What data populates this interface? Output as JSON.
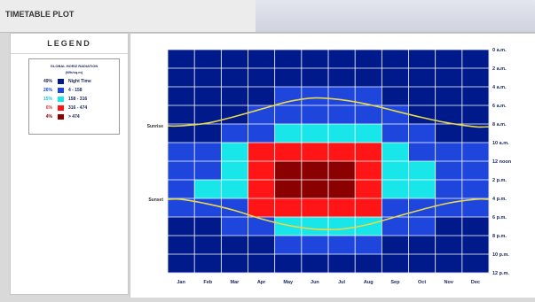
{
  "window": {
    "title": "TIMETABLE PLOT"
  },
  "legend": {
    "heading": "LEGEND",
    "caption_line1": "GLOBAL HORIZ RADIATION",
    "caption_line2": "(Wh/sq.m)",
    "items": [
      {
        "percent": "49%",
        "label": "Night Time",
        "color": "#001a8c"
      },
      {
        "percent": "26%",
        "label": "4 - 158",
        "color": "#1e46dc"
      },
      {
        "percent": "15%",
        "label": "158 - 316",
        "color": "#19e6e8"
      },
      {
        "percent": "6%",
        "label": "316 - 474",
        "color": "#ff1515"
      },
      {
        "percent": "4%",
        "label": "> 474",
        "color": "#8b0000"
      }
    ]
  },
  "chart_data": {
    "type": "heatmap",
    "title": "",
    "x_categories": [
      "Jan",
      "Feb",
      "Mar",
      "Apr",
      "May",
      "Jun",
      "Jul",
      "Aug",
      "Sep",
      "Oct",
      "Nov",
      "Dec"
    ],
    "y_labels": [
      "0 a.m.",
      "2 a.m.",
      "4 a.m.",
      "6 a.m.",
      "8 a.m.",
      "10 a.m.",
      "12 noon",
      "2 p.m.",
      "4 p.m.",
      "6 p.m.",
      "8 p.m.",
      "10 p.m.",
      "12 p.m."
    ],
    "hour_range": [
      0,
      24
    ],
    "row_hours": 2,
    "matrix_note": "rows = hours 0-2 .. 22-24, columns = Jan..Dec; 0 Night Time, 1 4-158, 2 158-316, 3 316-474, 4 >474",
    "matrix": [
      [
        0,
        0,
        0,
        0,
        0,
        0,
        0,
        0,
        0,
        0,
        0,
        0
      ],
      [
        0,
        0,
        0,
        0,
        0,
        0,
        0,
        0,
        0,
        0,
        0,
        0
      ],
      [
        0,
        0,
        0,
        0,
        1,
        1,
        1,
        1,
        0,
        0,
        0,
        0
      ],
      [
        0,
        0,
        0,
        1,
        1,
        1,
        1,
        1,
        1,
        0,
        0,
        0
      ],
      [
        0,
        0,
        1,
        1,
        2,
        2,
        2,
        2,
        1,
        1,
        0,
        0
      ],
      [
        1,
        1,
        2,
        3,
        3,
        3,
        3,
        3,
        2,
        1,
        1,
        1
      ],
      [
        1,
        1,
        2,
        3,
        4,
        4,
        4,
        3,
        2,
        2,
        1,
        1
      ],
      [
        1,
        2,
        2,
        3,
        4,
        4,
        4,
        3,
        2,
        2,
        1,
        1
      ],
      [
        1,
        1,
        1,
        3,
        3,
        3,
        3,
        3,
        1,
        1,
        1,
        1
      ],
      [
        0,
        0,
        1,
        1,
        2,
        2,
        2,
        2,
        1,
        1,
        0,
        0
      ],
      [
        0,
        0,
        0,
        0,
        1,
        1,
        1,
        1,
        0,
        0,
        0,
        0
      ],
      [
        0,
        0,
        0,
        0,
        0,
        0,
        0,
        0,
        0,
        0,
        0,
        0
      ]
    ],
    "curves": [
      {
        "name": "Sunrise",
        "color": "#e8d84a",
        "hours": [
          8.2,
          7.9,
          7.2,
          6.4,
          5.6,
          5.2,
          5.4,
          5.9,
          6.6,
          7.3,
          7.9,
          8.3
        ]
      },
      {
        "name": "Sunset",
        "color": "#e8d84a",
        "hours": [
          16.1,
          16.6,
          17.3,
          18.2,
          18.9,
          19.3,
          19.3,
          18.8,
          18.0,
          17.2,
          16.5,
          16.1
        ]
      }
    ],
    "grid": true
  }
}
